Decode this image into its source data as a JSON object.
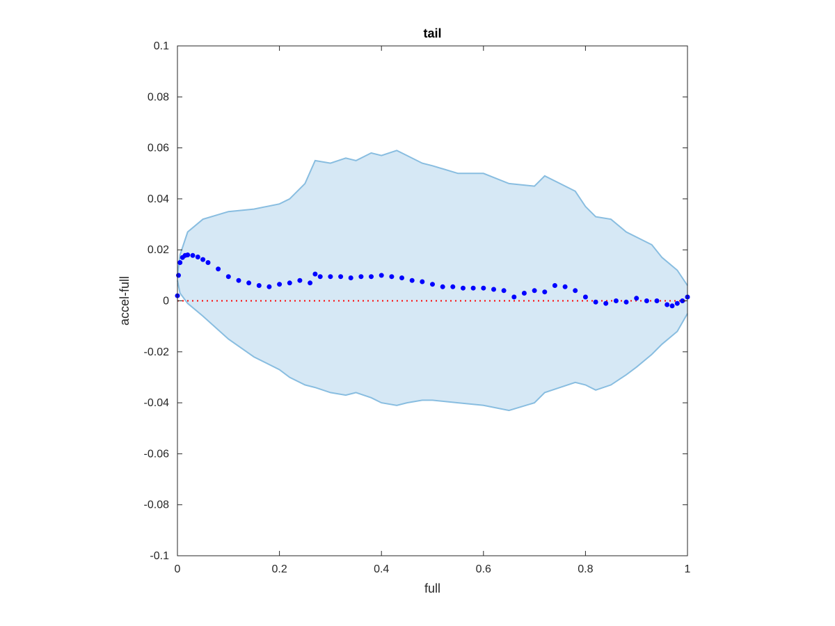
{
  "chart_data": {
    "type": "scatter",
    "title": "tail",
    "xlabel": "full",
    "ylabel": "accel-full",
    "xlim": [
      0,
      1
    ],
    "ylim": [
      -0.1,
      0.1
    ],
    "xticks": [
      0,
      0.2,
      0.4,
      0.6,
      0.8,
      1
    ],
    "xtick_labels": [
      "0",
      "0.2",
      "0.4",
      "0.6",
      "0.8",
      "1"
    ],
    "yticks": [
      -0.1,
      -0.08,
      -0.06,
      -0.04,
      -0.02,
      0,
      0.02,
      0.04,
      0.06,
      0.08,
      0.1
    ],
    "ytick_labels": [
      "-0.1",
      "-0.08",
      "-0.06",
      "-0.04",
      "-0.02",
      "0",
      "0.02",
      "0.04",
      "0.06",
      "0.08",
      "0.1"
    ],
    "grid": false,
    "colors": {
      "band_fill": "#d6e8f5",
      "band_edge": "#88bde0",
      "points": "#0000ff",
      "zero_line": "#ff0000",
      "axis": "#262626"
    },
    "reference_line": {
      "y": 0,
      "style": "dotted"
    },
    "band": {
      "x": [
        0,
        0.005,
        0.02,
        0.05,
        0.1,
        0.15,
        0.2,
        0.22,
        0.25,
        0.27,
        0.3,
        0.33,
        0.35,
        0.38,
        0.4,
        0.43,
        0.45,
        0.48,
        0.5,
        0.55,
        0.6,
        0.65,
        0.7,
        0.72,
        0.75,
        0.78,
        0.8,
        0.82,
        0.85,
        0.88,
        0.9,
        0.93,
        0.95,
        0.98,
        1
      ],
      "upper": [
        0.01,
        0.018,
        0.027,
        0.032,
        0.035,
        0.036,
        0.038,
        0.04,
        0.046,
        0.055,
        0.054,
        0.056,
        0.055,
        0.058,
        0.057,
        0.059,
        0.057,
        0.054,
        0.053,
        0.05,
        0.05,
        0.046,
        0.045,
        0.049,
        0.046,
        0.043,
        0.037,
        0.033,
        0.032,
        0.027,
        0.025,
        0.022,
        0.017,
        0.012,
        0.006
      ],
      "lower": [
        0.008,
        0.003,
        -0.001,
        -0.006,
        -0.015,
        -0.022,
        -0.027,
        -0.03,
        -0.033,
        -0.034,
        -0.036,
        -0.037,
        -0.036,
        -0.038,
        -0.04,
        -0.041,
        -0.04,
        -0.039,
        -0.039,
        -0.04,
        -0.041,
        -0.043,
        -0.04,
        -0.036,
        -0.034,
        -0.032,
        -0.033,
        -0.035,
        -0.033,
        -0.029,
        -0.026,
        -0.021,
        -0.017,
        -0.012,
        -0.005
      ]
    },
    "series": [
      {
        "x": [
          0,
          0.002,
          0.005,
          0.01,
          0.015,
          0.02,
          0.03,
          0.04,
          0.05,
          0.06,
          0.08,
          0.1,
          0.12,
          0.14,
          0.16,
          0.18,
          0.2,
          0.22,
          0.24,
          0.26,
          0.27,
          0.28,
          0.3,
          0.32,
          0.34,
          0.36,
          0.38,
          0.4,
          0.42,
          0.44,
          0.46,
          0.48,
          0.5,
          0.52,
          0.54,
          0.56,
          0.58,
          0.6,
          0.62,
          0.64,
          0.66,
          0.68,
          0.7,
          0.72,
          0.74,
          0.76,
          0.78,
          0.8,
          0.82,
          0.84,
          0.86,
          0.88,
          0.9,
          0.92,
          0.94,
          0.96,
          0.97,
          0.98,
          0.99,
          1
        ],
        "y": [
          0.002,
          0.01,
          0.015,
          0.017,
          0.0178,
          0.018,
          0.0178,
          0.0172,
          0.0162,
          0.015,
          0.0125,
          0.0095,
          0.008,
          0.007,
          0.006,
          0.0055,
          0.0065,
          0.007,
          0.008,
          0.007,
          0.0105,
          0.0095,
          0.0095,
          0.0095,
          0.009,
          0.0095,
          0.0095,
          0.01,
          0.0095,
          0.009,
          0.008,
          0.0075,
          0.0065,
          0.0055,
          0.0055,
          0.005,
          0.005,
          0.005,
          0.0045,
          0.004,
          0.0015,
          0.003,
          0.004,
          0.0035,
          0.006,
          0.0055,
          0.004,
          0.0015,
          -0.0005,
          -0.001,
          0,
          -0.0005,
          0.001,
          0,
          0,
          -0.0015,
          -0.002,
          -0.001,
          0,
          0.0015
        ]
      }
    ]
  }
}
